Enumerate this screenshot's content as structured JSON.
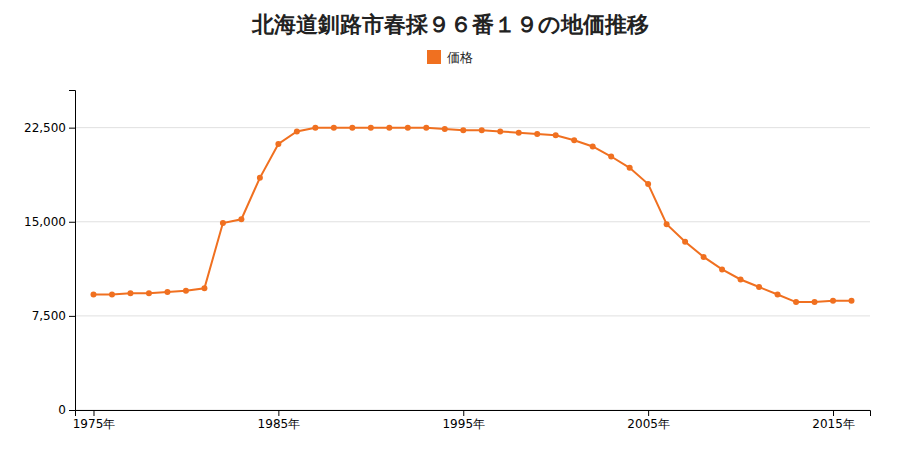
{
  "chart_data": {
    "type": "line",
    "title": "北海道釧路市春採９６番１９の地価推移",
    "x": [
      1975,
      1976,
      1977,
      1978,
      1979,
      1980,
      1981,
      1982,
      1983,
      1984,
      1985,
      1986,
      1987,
      1988,
      1989,
      1990,
      1991,
      1992,
      1993,
      1994,
      1995,
      1996,
      1997,
      1998,
      1999,
      2000,
      2001,
      2002,
      2003,
      2004,
      2005,
      2006,
      2007,
      2008,
      2009,
      2010,
      2011,
      2012,
      2013,
      2014,
      2015,
      2016
    ],
    "series": [
      {
        "name": "価格",
        "color": "#f07020",
        "marker": "circle",
        "values": [
          9200,
          9200,
          9300,
          9300,
          9400,
          9500,
          9700,
          14900,
          15200,
          18500,
          21200,
          22200,
          22500,
          22500,
          22500,
          22500,
          22500,
          22500,
          22500,
          22400,
          22300,
          22300,
          22200,
          22100,
          22000,
          21900,
          21500,
          21000,
          20200,
          19300,
          18000,
          14800,
          13400,
          12200,
          11200,
          10400,
          9800,
          9200,
          8600,
          8600,
          8700,
          8700
        ]
      }
    ],
    "xlim": [
      1974,
      2017
    ],
    "xticks": [
      {
        "value": 1975,
        "label": "1975年"
      },
      {
        "value": 1985,
        "label": "1985年"
      },
      {
        "value": 1995,
        "label": "1995年"
      },
      {
        "value": 2005,
        "label": "2005年"
      },
      {
        "value": 2015,
        "label": "2015年"
      }
    ],
    "ylim": [
      0,
      25500
    ],
    "yticks": [
      0,
      {
        "value": 7500,
        "label": "7,500"
      },
      {
        "value": 15000,
        "label": "15,000"
      },
      {
        "value": 22500,
        "label": "22,500"
      }
    ],
    "grid": "y",
    "legend": "top"
  }
}
